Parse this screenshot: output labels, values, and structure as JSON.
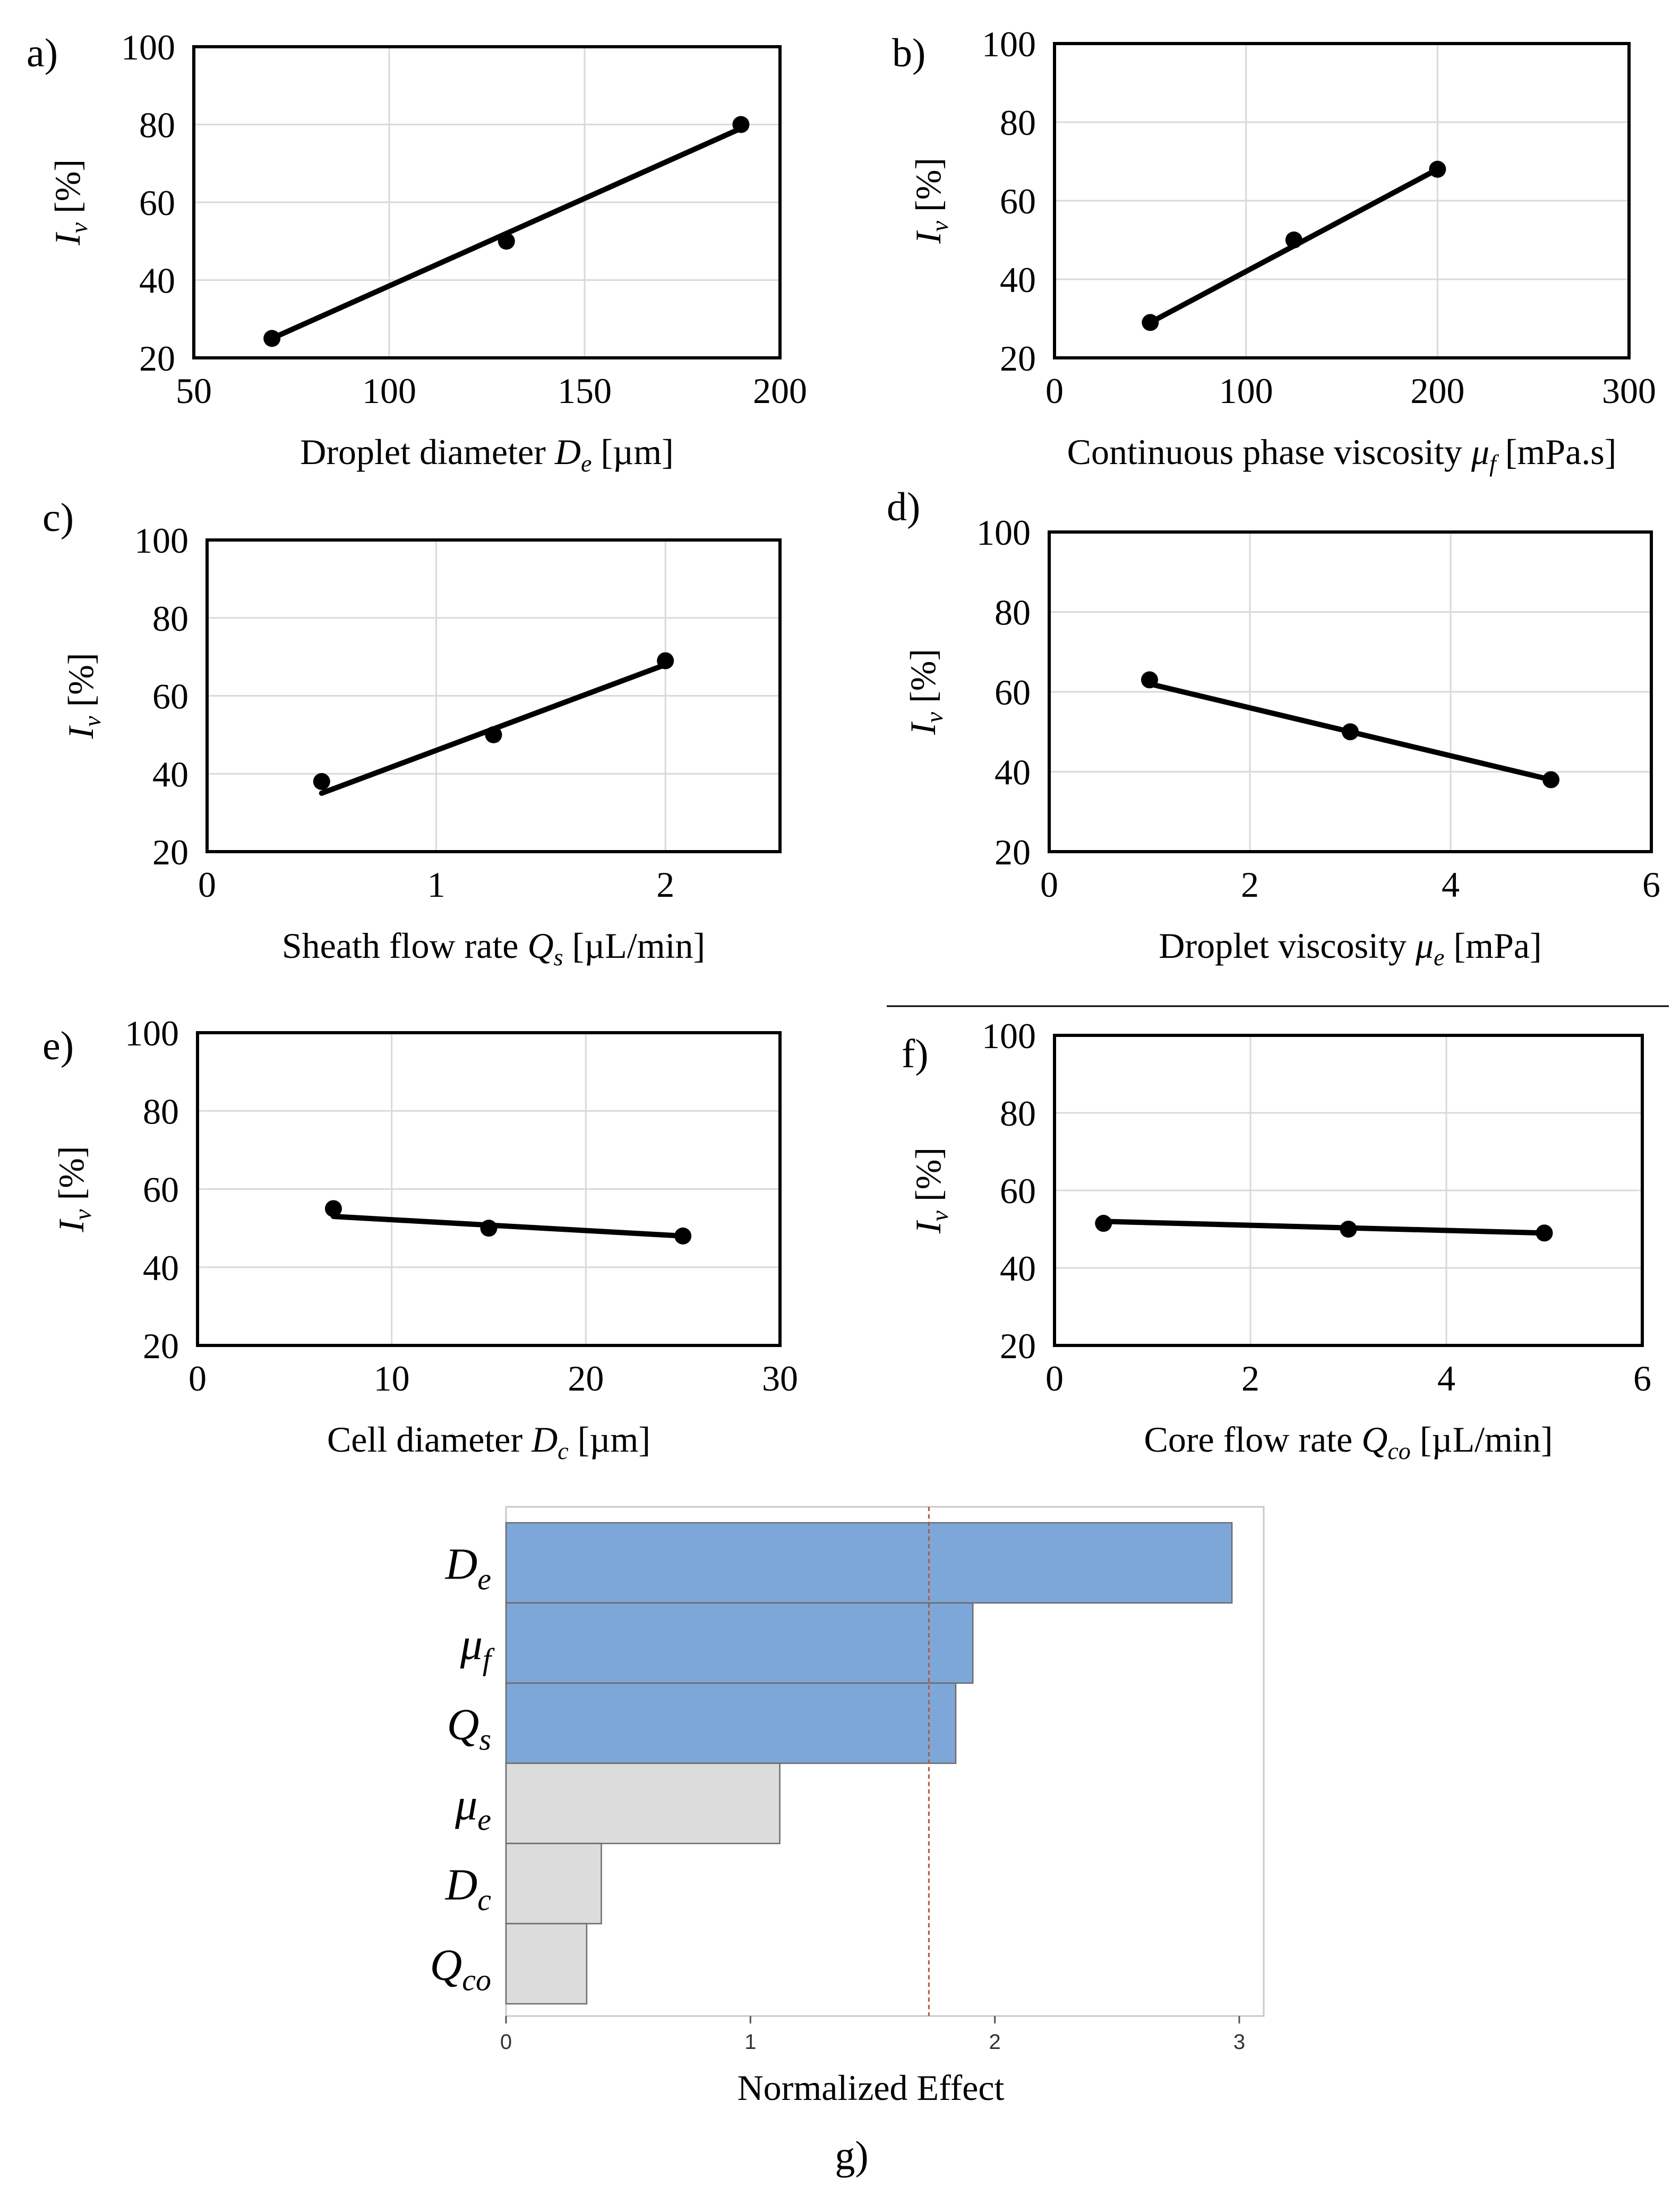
{
  "charts": [
    {
      "panel": "a)",
      "type": "scatter",
      "x": [
        70,
        130,
        190
      ],
      "y": [
        25,
        50,
        80
      ],
      "fit": [
        [
          70,
          25
        ],
        [
          190,
          79
        ]
      ],
      "xlim": [
        50,
        200
      ],
      "ylim": [
        20,
        100
      ],
      "xticks": [
        "50",
        "100",
        "150",
        "200"
      ],
      "yticks": [
        "20",
        "40",
        "60",
        "80",
        "100"
      ],
      "xlabel": {
        "text": "Droplet diameter ",
        "var": "D",
        "sub": "e",
        "unit": " [µm]"
      },
      "ylabel": {
        "var": "I",
        "sub": "v",
        "unit": " [%]"
      }
    },
    {
      "panel": "b)",
      "type": "scatter",
      "x": [
        50,
        125,
        200
      ],
      "y": [
        29,
        50,
        68
      ],
      "fit": [
        [
          50,
          29
        ],
        [
          200,
          68
        ]
      ],
      "xlim": [
        0,
        300
      ],
      "ylim": [
        20,
        100
      ],
      "xticks": [
        "0",
        "100",
        "200",
        "300"
      ],
      "yticks": [
        "20",
        "40",
        "60",
        "80",
        "100"
      ],
      "xlabel": {
        "text": "Continuous phase viscosity  ",
        "var": "μ",
        "sub": "f",
        "unit": " [mPa.s]"
      },
      "ylabel": {
        "var": "I",
        "sub": "v",
        "unit": " [%]"
      }
    },
    {
      "panel": "c)",
      "type": "scatter",
      "x": [
        0.5,
        1.25,
        2
      ],
      "y": [
        38,
        50,
        69
      ],
      "fit": [
        [
          0.5,
          35
        ],
        [
          2,
          68
        ]
      ],
      "xlim": [
        0,
        2.5
      ],
      "ylim": [
        20,
        100
      ],
      "xticks": [
        "0",
        "1",
        "2"
      ],
      "yticks": [
        "20",
        "40",
        "60",
        "80",
        "100"
      ],
      "xlabel": {
        "text": "Sheath flow rate ",
        "var": "Q",
        "sub": "s",
        "unit": " [µL/min]"
      },
      "ylabel": {
        "var": "I",
        "sub": "v",
        "unit": " [%]"
      }
    },
    {
      "panel": "d)",
      "type": "scatter",
      "x": [
        1,
        3,
        5
      ],
      "y": [
        63,
        50,
        38
      ],
      "fit": [
        [
          1,
          62
        ],
        [
          5,
          38
        ]
      ],
      "xlim": [
        0,
        6
      ],
      "ylim": [
        20,
        100
      ],
      "xticks": [
        "0",
        "2",
        "4",
        "6"
      ],
      "yticks": [
        "20",
        "40",
        "60",
        "80",
        "100"
      ],
      "xlabel": {
        "text": "Droplet viscosity ",
        "var": "μ",
        "sub": "e",
        "unit": " [mPa]"
      },
      "ylabel": {
        "var": "I",
        "sub": "v",
        "unit": " [%]"
      }
    },
    {
      "panel": "e)",
      "type": "scatter",
      "x": [
        7,
        15,
        25
      ],
      "y": [
        55,
        50,
        48
      ],
      "fit": [
        [
          7,
          53
        ],
        [
          25,
          48
        ]
      ],
      "xlim": [
        0,
        30
      ],
      "ylim": [
        20,
        100
      ],
      "xticks": [
        "0",
        "10",
        "20",
        "30"
      ],
      "yticks": [
        "20",
        "40",
        "60",
        "80",
        "100"
      ],
      "xlabel": {
        "text": "Cell diameter ",
        "var": "D",
        "sub": "c",
        "unit": " [µm]"
      },
      "ylabel": {
        "var": "I",
        "sub": "v",
        "unit": " [%]"
      }
    },
    {
      "panel": "f)",
      "type": "scatter",
      "x": [
        0.5,
        3,
        5
      ],
      "y": [
        51.5,
        50,
        49
      ],
      "fit": [
        [
          0.5,
          52
        ],
        [
          5,
          49
        ]
      ],
      "xlim": [
        0,
        6
      ],
      "ylim": [
        20,
        100
      ],
      "xticks": [
        "0",
        "2",
        "4",
        "6"
      ],
      "yticks": [
        "20",
        "40",
        "60",
        "80",
        "100"
      ],
      "xlabel": {
        "text": "Core flow rate ",
        "var": "Q",
        "sub": "co",
        "unit": " [µL/min]"
      },
      "ylabel": {
        "var": "I",
        "sub": "v",
        "unit": " [%]"
      }
    }
  ],
  "pareto": {
    "panel": "g)",
    "type": "bar",
    "orientation": "horizontal",
    "xlabel": "Normalized Effect",
    "xlim": [
      0,
      3.1
    ],
    "xticks": [
      "0",
      "1",
      "2",
      "3"
    ],
    "threshold": 1.73,
    "bars": [
      {
        "var": "D",
        "sub": "e",
        "value": 2.97,
        "significant": true
      },
      {
        "var": "μ",
        "sub": "f",
        "value": 1.91,
        "significant": true
      },
      {
        "var": "Q",
        "sub": "s",
        "value": 1.84,
        "significant": true
      },
      {
        "var": "μ",
        "sub": "e",
        "value": 1.12,
        "significant": false
      },
      {
        "var": "D",
        "sub": "c",
        "value": 0.39,
        "significant": false
      },
      {
        "var": "Q",
        "sub": "co",
        "value": 0.33,
        "significant": false
      }
    ],
    "colors": {
      "significant": "#7ea7d9",
      "other": "#dcdcdc",
      "edge": "#6b6b6b",
      "threshold": "#b05a3c",
      "grid": "#d9d9d9"
    }
  }
}
